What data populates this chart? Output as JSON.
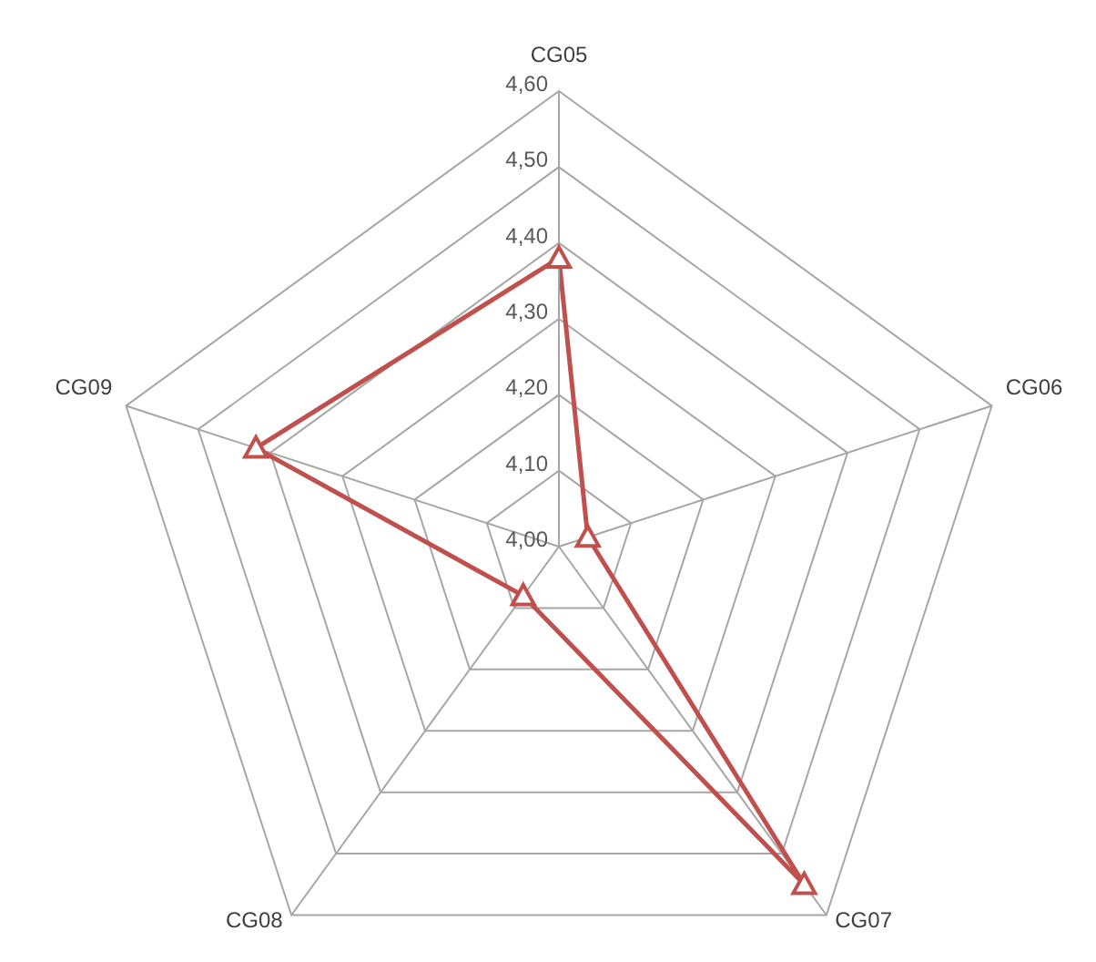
{
  "chart_data": {
    "type": "radar",
    "categories": [
      "CG05",
      "CG06",
      "CG07",
      "CG08",
      "CG09"
    ],
    "series": [
      {
        "color": "#c0504d",
        "values": [
          4.38,
          4.04,
          4.55,
          4.08,
          4.42
        ]
      }
    ],
    "ylim": [
      4,
      4.6
    ],
    "yticks": [
      {
        "value": 4,
        "label": "4,00"
      },
      {
        "value": 4.1,
        "label": "4,10"
      },
      {
        "value": 4.2,
        "label": "4,20"
      },
      {
        "value": 4.3,
        "label": "4,30"
      },
      {
        "value": 4.4,
        "label": "4,40"
      },
      {
        "value": 4.5,
        "label": "4,50"
      },
      {
        "value": 4.6,
        "label": "4,60"
      }
    ],
    "grid": true,
    "marker": "triangle",
    "legend": false
  }
}
